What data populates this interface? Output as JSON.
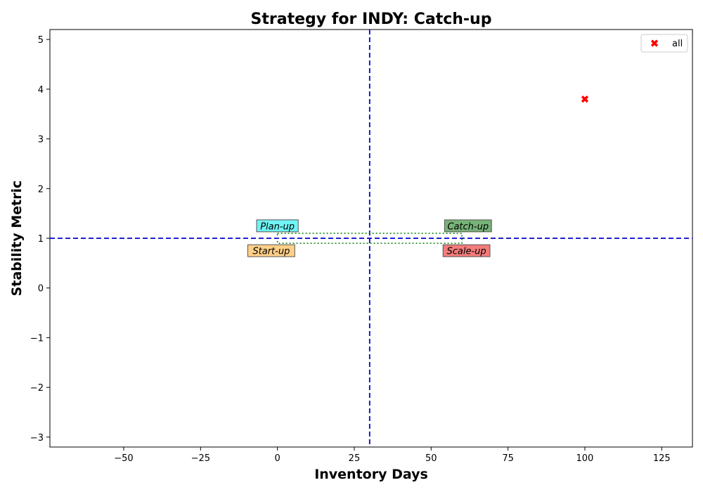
{
  "chart_data": {
    "type": "scatter",
    "title": "Strategy for INDY: Catch-up",
    "xlabel": "Inventory Days",
    "ylabel": "Stability Metric",
    "xlim": [
      -74,
      135
    ],
    "ylim": [
      -3.2,
      5.2
    ],
    "xticks": [
      -50,
      -25,
      0,
      25,
      50,
      75,
      100,
      125
    ],
    "yticks": [
      -3,
      -2,
      -1,
      0,
      1,
      2,
      3,
      4,
      5
    ],
    "grid": false,
    "legend": {
      "placement": "top-right",
      "entries": [
        "all"
      ]
    },
    "series": [
      {
        "name": "all",
        "color": "#ff0000",
        "marker": "x-filled",
        "points": [
          {
            "x": 100,
            "y": 3.8
          }
        ]
      }
    ],
    "reference_lines": [
      {
        "orientation": "vertical",
        "value": 30,
        "color": "#0000cc",
        "style": "dashed"
      },
      {
        "orientation": "horizontal",
        "value": 1,
        "color": "#0000cc",
        "style": "dashed"
      }
    ],
    "box": {
      "x": [
        0,
        60
      ],
      "y": [
        0.9,
        1.1
      ],
      "color": "#008000",
      "style": "dotted"
    },
    "quadrant_labels": [
      {
        "text": "Plan-up",
        "x": 0,
        "y": 1.25,
        "bg": "#40f0f0"
      },
      {
        "text": "Catch-up",
        "x": 62,
        "y": 1.25,
        "bg": "#4a9a4a"
      },
      {
        "text": "Start-up",
        "x": -2,
        "y": 0.75,
        "bg": "#ffc060"
      },
      {
        "text": "Scale-up",
        "x": 61.5,
        "y": 0.75,
        "bg": "#f05050"
      }
    ]
  }
}
